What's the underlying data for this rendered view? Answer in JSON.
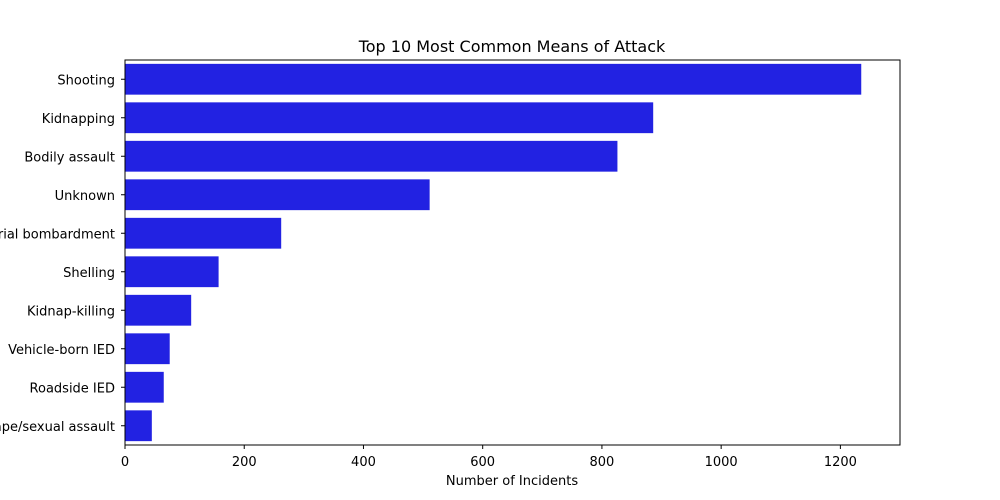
{
  "chart_data": {
    "type": "bar",
    "orientation": "horizontal",
    "title": "Top 10 Most Common Means of Attack",
    "xlabel": "Number of Incidents",
    "ylabel": "",
    "categories": [
      "Shooting",
      "Kidnapping",
      "Bodily assault",
      "Unknown",
      "Aerial bombardment",
      "Shelling",
      "Kidnap-killing",
      "Vehicle-born IED",
      "Roadside IED",
      "Rape/sexual assault"
    ],
    "values": [
      1235,
      886,
      826,
      511,
      262,
      157,
      111,
      75,
      65,
      45
    ],
    "xlim": [
      0,
      1300
    ],
    "xticks": [
      0,
      200,
      400,
      600,
      800,
      1000,
      1200
    ],
    "bar_color": "#2222e2",
    "grid": false,
    "legend": false
  }
}
